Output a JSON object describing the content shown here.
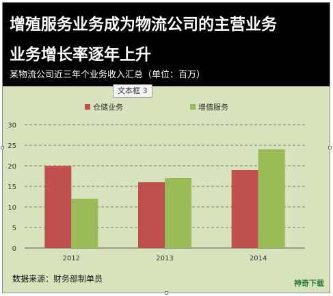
{
  "header": {
    "title_line1": "增殖服务业务成为物流公司的主营业务",
    "title_line2": "业务增长率逐年上升",
    "subtitle": "某物流公司近三年个业务收入汇总（单位：百万）"
  },
  "textbox_tag": "文本框 3",
  "source_note": "数据来源：财务部制单员",
  "watermark": "神奇下载",
  "colors": {
    "header_bg": "#000000",
    "plot_bg": "#d6e3bc",
    "series1": "#c0504d",
    "series2": "#9bbb59"
  },
  "chart_data": {
    "type": "bar",
    "categories": [
      "2012",
      "2013",
      "2014"
    ],
    "series": [
      {
        "name": "仓储业务",
        "values": [
          20,
          16,
          19
        ],
        "color": "#c0504d"
      },
      {
        "name": "增值服务",
        "values": [
          12,
          17,
          24
        ],
        "color": "#9bbb59"
      }
    ],
    "yticks": [
      "0",
      "5",
      "10",
      "15",
      "20",
      "25",
      "30"
    ],
    "ylim": [
      0,
      30
    ],
    "grid": true,
    "legend_position": "top-center"
  }
}
